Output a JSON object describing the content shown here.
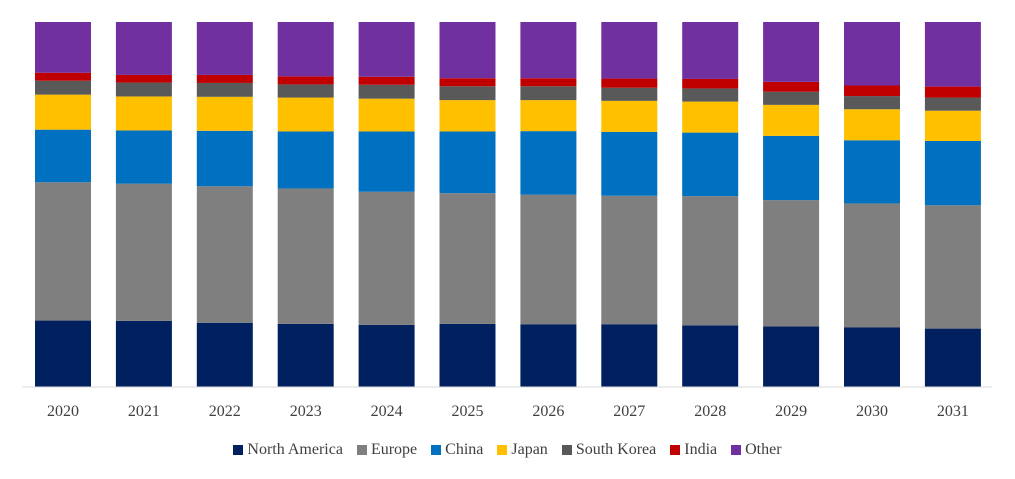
{
  "chart_data": {
    "type": "bar",
    "stacked": true,
    "normalized": true,
    "title": "",
    "xlabel": "",
    "ylabel": "",
    "ylim": [
      0,
      100
    ],
    "grid": false,
    "legend_position": "bottom",
    "categories": [
      "2020",
      "2021",
      "2022",
      "2023",
      "2024",
      "2025",
      "2026",
      "2027",
      "2028",
      "2029",
      "2030",
      "2031"
    ],
    "series": [
      {
        "name": "North America",
        "color": "#002060",
        "values": [
          18.2,
          18.1,
          17.6,
          17.3,
          17.0,
          17.3,
          17.2,
          17.2,
          16.9,
          16.6,
          16.3,
          16.0
        ]
      },
      {
        "name": "Europe",
        "color": "#7f7f7f",
        "values": [
          37.9,
          37.6,
          37.4,
          37.1,
          36.5,
          35.8,
          35.5,
          35.2,
          35.4,
          34.6,
          34.0,
          33.8
        ]
      },
      {
        "name": "China",
        "color": "#0070c0",
        "values": [
          14.4,
          14.6,
          15.2,
          15.6,
          16.5,
          16.9,
          17.4,
          17.5,
          17.4,
          17.6,
          17.3,
          17.6
        ]
      },
      {
        "name": "Japan",
        "color": "#ffc000",
        "values": [
          9.6,
          9.3,
          9.3,
          9.3,
          9.0,
          8.6,
          8.5,
          8.5,
          8.5,
          8.5,
          8.5,
          8.3
        ]
      },
      {
        "name": "South Korea",
        "color": "#595959",
        "values": [
          3.8,
          3.8,
          3.8,
          3.6,
          3.8,
          3.8,
          3.8,
          3.6,
          3.6,
          3.6,
          3.6,
          3.6
        ]
      },
      {
        "name": "India",
        "color": "#c00000",
        "values": [
          2.2,
          2.1,
          2.2,
          2.2,
          2.2,
          2.2,
          2.2,
          2.5,
          2.6,
          2.7,
          2.9,
          3.0
        ]
      },
      {
        "name": "Other",
        "color": "#7030a0",
        "values": [
          13.9,
          14.5,
          14.5,
          14.9,
          15.0,
          15.4,
          15.4,
          15.5,
          15.6,
          16.4,
          17.4,
          17.7
        ]
      }
    ]
  }
}
